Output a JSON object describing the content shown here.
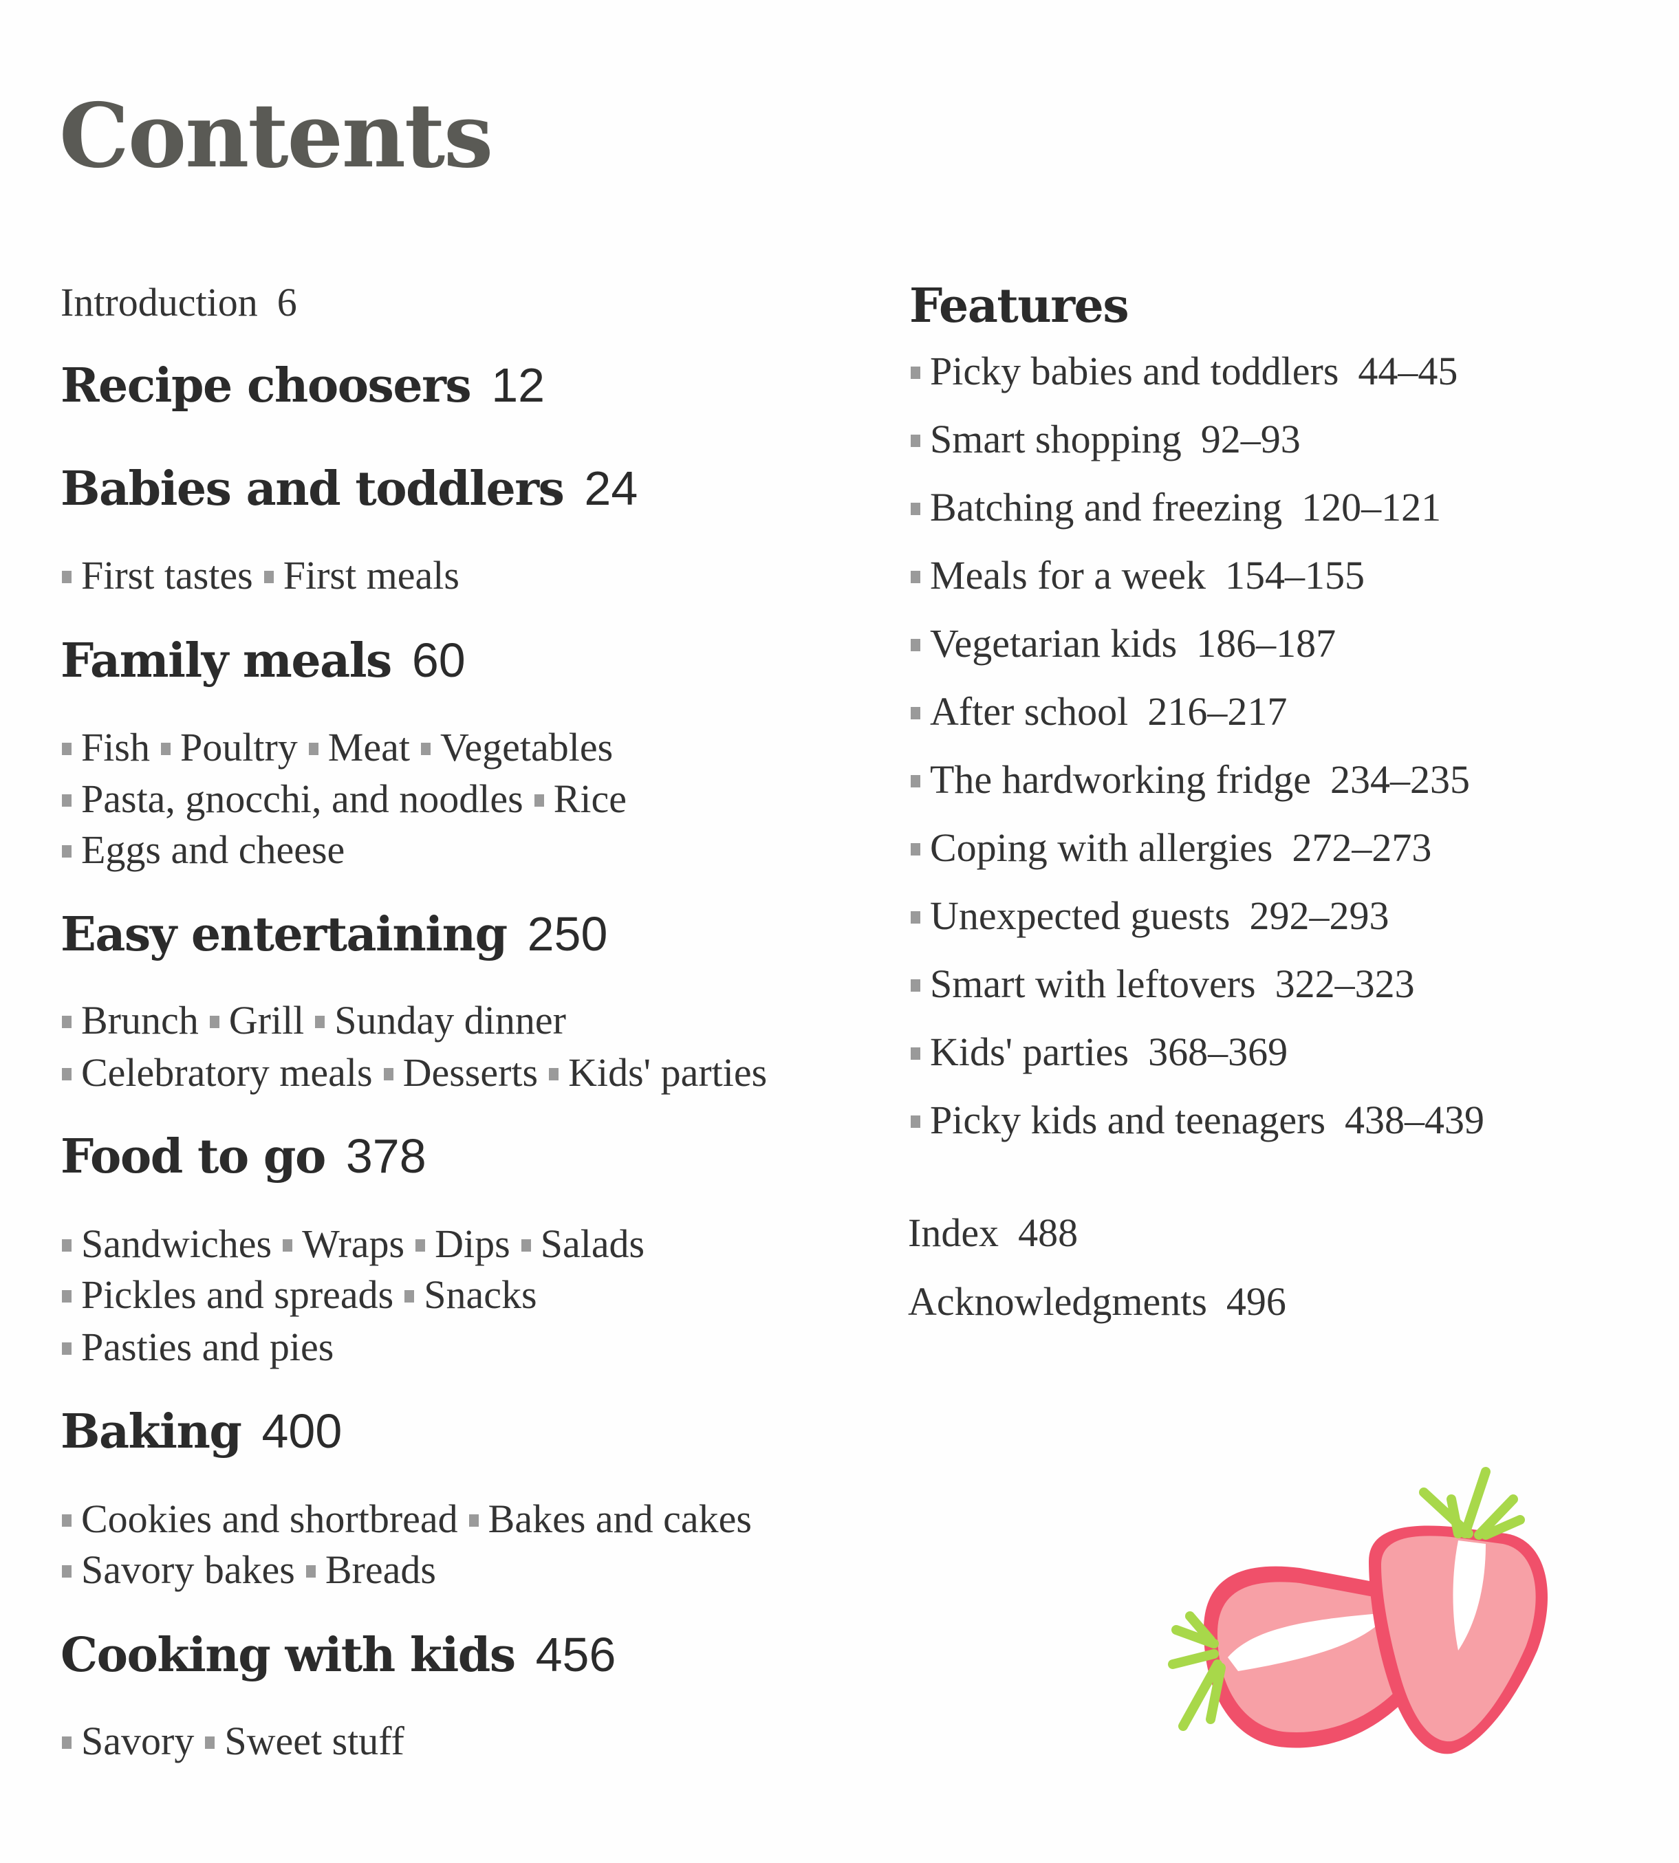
{
  "title": "Contents",
  "intro": {
    "label": "Introduction",
    "page": "6"
  },
  "sections": [
    {
      "label": "Recipe choosers",
      "page": "12",
      "lines": []
    },
    {
      "label": "Babies and toddlers",
      "page": "24",
      "lines": [
        [
          "First tastes",
          "First meals"
        ]
      ]
    },
    {
      "label": "Family meals",
      "page": "60",
      "lines": [
        [
          "Fish",
          "Poultry",
          "Meat",
          "Vegetables"
        ],
        [
          "Pasta, gnocchi, and noodles",
          "Rice"
        ],
        [
          "Eggs and cheese"
        ]
      ]
    },
    {
      "label": "Easy entertaining",
      "page": "250",
      "lines": [
        [
          "Brunch",
          "Grill",
          "Sunday dinner"
        ],
        [
          "Celebratory meals",
          "Desserts",
          "Kids' parties"
        ]
      ]
    },
    {
      "label": "Food to go",
      "page": "378",
      "lines": [
        [
          "Sandwiches",
          "Wraps",
          "Dips",
          "Salads"
        ],
        [
          "Pickles and spreads",
          "Snacks"
        ],
        [
          "Pasties and pies"
        ]
      ]
    },
    {
      "label": "Baking",
      "page": "400",
      "lines": [
        [
          "Cookies and shortbread",
          "Bakes and cakes"
        ],
        [
          "Savory bakes",
          "Breads"
        ]
      ]
    },
    {
      "label": "Cooking with kids",
      "page": "456",
      "lines": [
        [
          "Savory",
          "Sweet stuff"
        ]
      ]
    }
  ],
  "features": {
    "label": "Features",
    "items": [
      {
        "label": "Picky babies and toddlers",
        "page": "44–45"
      },
      {
        "label": "Smart shopping",
        "page": "92–93"
      },
      {
        "label": "Batching and freezing",
        "page": "120–121"
      },
      {
        "label": "Meals for a week",
        "page": "154–155"
      },
      {
        "label": "Vegetarian kids",
        "page": "186–187"
      },
      {
        "label": "After school",
        "page": "216–217"
      },
      {
        "label": "The hardworking fridge",
        "page": "234–235"
      },
      {
        "label": "Coping with allergies",
        "page": "272–273"
      },
      {
        "label": "Unexpected guests",
        "page": "292–293"
      },
      {
        "label": "Smart with leftovers",
        "page": "322–323"
      },
      {
        "label": "Kids' parties",
        "page": "368–369"
      },
      {
        "label": "Picky kids and teenagers",
        "page": "438–439"
      }
    ]
  },
  "index": {
    "label": "Index",
    "page": "488"
  },
  "acknowledgments": {
    "label": "Acknowledgments",
    "page": "496"
  },
  "colors": {
    "bullet": "#9a9a9a",
    "strawberry_red": "#f0506a",
    "strawberry_flesh": "#f7a0a6",
    "leaf": "#a8d84a"
  }
}
